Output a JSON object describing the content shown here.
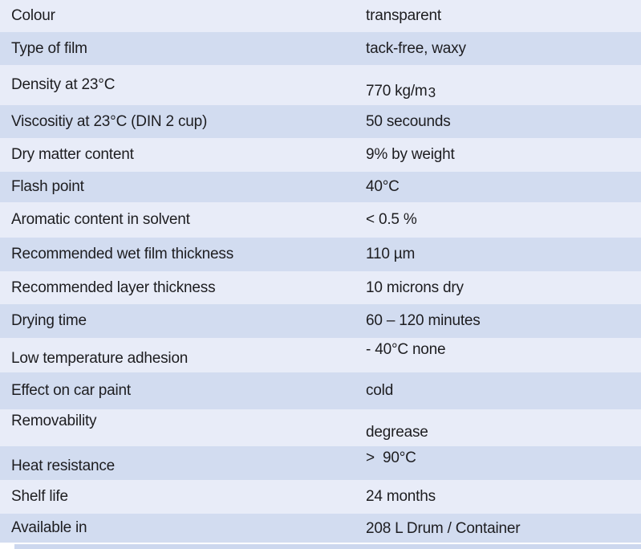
{
  "table": {
    "rows": [
      {
        "label": "Colour",
        "value": "transparent"
      },
      {
        "label": "Type of film",
        "value": "tack-free, waxy"
      },
      {
        "label": "Density at 23°C",
        "value": "770 kg/m",
        "value_sup": "3",
        "value_valign": "low"
      },
      {
        "label": "Viscositiy at 23°C (DIN 2 cup)",
        "value": "50 secounds"
      },
      {
        "label": "Dry matter content",
        "value": "9% by weight"
      },
      {
        "label": "Flash point",
        "value": "40°C"
      },
      {
        "label": "Aromatic content in solvent",
        "value": "< 0.5 %"
      },
      {
        "label": "Recommended wet film thickness",
        "value": "110 µm"
      },
      {
        "label": "Recommended layer thickness",
        "value": "10 microns dry"
      },
      {
        "label": "Drying time",
        "value": "60 – 120 minutes"
      },
      {
        "label": "Low temperature adhesion",
        "value": "- 40°C none",
        "value_valign": "high",
        "label_valign": "low"
      },
      {
        "label": "Effect on car paint",
        "value": "cold"
      },
      {
        "label": "Removability",
        "value": "degrease",
        "value_valign": "low",
        "label_valign": "high"
      },
      {
        "label": "Heat resistance",
        "value": ">  90°C",
        "value_valign": "high",
        "label_valign": "low"
      },
      {
        "label": "Shelf life",
        "value": "24 months"
      },
      {
        "label": "Available in",
        "value": "208 L Drum / Container",
        "value_valign": "low"
      }
    ],
    "colors": {
      "row_light": "#e8ecf8",
      "row_dark": "#d2dcf0",
      "text": "#1d1d20",
      "next_row_partial": "#ccd7ee"
    }
  }
}
